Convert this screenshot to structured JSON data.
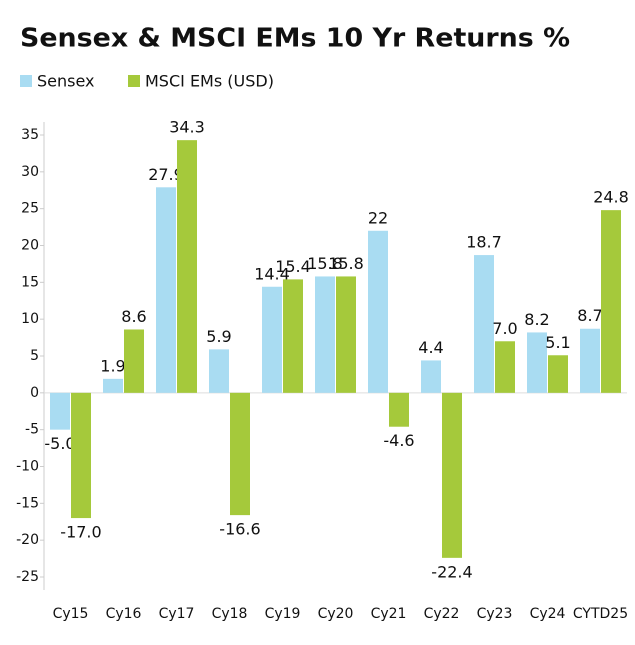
{
  "chart_data": {
    "type": "bar",
    "title": "Sensex & MSCI EMs 10 Yr Returns %",
    "categories": [
      "Cy15",
      "Cy16",
      "Cy17",
      "Cy18",
      "Cy19",
      "Cy20",
      "Cy21",
      "Cy22",
      "Cy23",
      "Cy24",
      "CYTD25"
    ],
    "series": [
      {
        "name": "Sensex",
        "color": "#a9dcf2",
        "values": [
          -5.0,
          1.9,
          27.9,
          5.9,
          14.4,
          15.8,
          22,
          4.4,
          18.7,
          8.2,
          8.7
        ],
        "value_labels": [
          "-5.0",
          "1.9",
          "27.9",
          "5.9",
          "14.4",
          "15.8",
          "22",
          "4.4",
          "18.7",
          "8.2",
          "8.7"
        ]
      },
      {
        "name": "MSCI EMs (USD)",
        "color": "#a5c93b",
        "values": [
          -17.0,
          8.6,
          34.3,
          -16.6,
          15.4,
          15.8,
          -4.6,
          -22.4,
          7.0,
          5.1,
          24.8
        ],
        "value_labels": [
          "-17.0",
          "8.6",
          "34.3",
          "-16.6",
          "15.4",
          "15.8",
          "-4.6",
          "-22.4",
          "7.0",
          "5.1",
          "24.8"
        ]
      }
    ],
    "ylim": [
      -25,
      35
    ],
    "yticks": [
      35,
      30,
      25,
      20,
      15,
      10,
      5,
      0,
      -5,
      -10,
      -15,
      -20,
      -25
    ]
  }
}
